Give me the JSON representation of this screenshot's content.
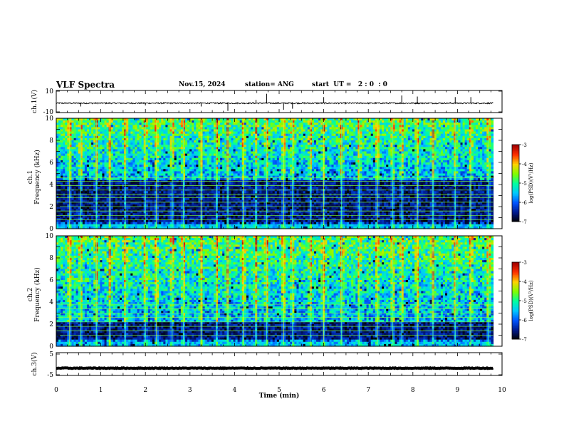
{
  "header": {
    "title": "VLF Spectra",
    "date": "Nov.15, 2024",
    "station": "station= ANG",
    "start": "start  UT =   2 : 0  : 0"
  },
  "chart_data": [
    {
      "type": "line",
      "title": "",
      "ylabel": "ch.1(V)",
      "ylim": [
        -10,
        10
      ],
      "yticks": [
        "10",
        "-10"
      ],
      "description": "ch.1 waveform, near-zero baseline around -1.5 V with sparse spikes",
      "baseline": -1.5,
      "noise": 0.6,
      "spikes": [
        {
          "x": 0.55,
          "y": -4.5
        },
        {
          "x": 2.0,
          "y": -3.5
        },
        {
          "x": 3.25,
          "y": -4.5
        },
        {
          "x": 3.85,
          "y": -8.5
        },
        {
          "x": 4.48,
          "y": 1.5
        },
        {
          "x": 4.72,
          "y": 7.0
        },
        {
          "x": 5.1,
          "y": -7.5
        },
        {
          "x": 5.3,
          "y": -6.5
        },
        {
          "x": 6.0,
          "y": 4.0
        },
        {
          "x": 7.75,
          "y": 5.5
        },
        {
          "x": 8.1,
          "y": 4.5
        },
        {
          "x": 8.95,
          "y": 4.0
        },
        {
          "x": 9.3,
          "y": 4.0
        }
      ]
    },
    {
      "type": "heatmap",
      "ylabel": "ch.1\nFrequency (kHz)",
      "ylabel_line1": "ch.1",
      "ylabel_line2": "Frequency  (kHz)",
      "ylim": [
        0,
        10
      ],
      "yticks": [
        "0",
        "2",
        "4",
        "6",
        "8",
        "10"
      ],
      "colorbar": {
        "label": "log(PSD)(V²/Hz)",
        "range": [
          -7,
          -3
        ],
        "ticks": [
          "-3",
          "-4",
          "-5",
          "-6",
          "-7"
        ]
      },
      "colors": [
        "#000000",
        "#001a8c",
        "#0055ff",
        "#00c8ff",
        "#00ffa0",
        "#80ff00",
        "#ffd200",
        "#ff3000",
        "#a00000"
      ],
      "horizontal_lines_khz": [
        0.8,
        1.2,
        1.6,
        2.0,
        2.4,
        2.8,
        3.1,
        3.5,
        3.9,
        4.3,
        4.6
      ],
      "dark_band_khz": [
        0.6,
        4.4
      ],
      "burst_times_min": [
        0.3,
        0.55,
        0.9,
        1.2,
        1.55,
        2.0,
        2.25,
        2.6,
        2.85,
        3.25,
        3.6,
        3.85,
        4.2,
        4.48,
        4.72,
        5.1,
        5.3,
        5.7,
        6.0,
        6.4,
        6.8,
        7.2,
        7.55,
        7.75,
        8.1,
        8.45,
        8.95,
        9.3,
        9.7
      ]
    },
    {
      "type": "heatmap",
      "ylabel": "ch.2\nFrequency (kHz)",
      "ylabel_line1": "ch.2",
      "ylabel_line2": "Frequency  (kHz)",
      "ylim": [
        0,
        10
      ],
      "yticks": [
        "0",
        "2",
        "4",
        "6",
        "8",
        "10"
      ],
      "colorbar": {
        "label": "log(PSD)(V²/Hz)",
        "range": [
          -7,
          -3
        ],
        "ticks": [
          "-3",
          "-4",
          "-5",
          "-6",
          "-7"
        ]
      },
      "colors": [
        "#000000",
        "#001a8c",
        "#0055ff",
        "#00c8ff",
        "#00ffa0",
        "#80ff00",
        "#ffd200",
        "#ff3000",
        "#a00000"
      ],
      "horizontal_lines_khz": [
        1.0,
        1.4,
        1.8,
        2.2,
        2.6,
        3.0,
        3.4,
        3.8
      ],
      "dark_band_khz": [
        0.6,
        2.2
      ],
      "burst_times_min": [
        0.3,
        0.55,
        0.9,
        1.2,
        1.55,
        2.0,
        2.25,
        2.6,
        2.85,
        3.25,
        3.6,
        3.85,
        4.2,
        4.48,
        4.72,
        5.1,
        5.3,
        5.7,
        6.0,
        6.4,
        6.8,
        7.2,
        7.55,
        7.75,
        8.1,
        8.45,
        8.95,
        9.3,
        9.7
      ]
    },
    {
      "type": "line",
      "ylabel": "ch.3(V)",
      "ylim": [
        -5,
        5
      ],
      "yticks": [
        "5",
        "-5"
      ],
      "baseline": -1.8,
      "noise": 0.15
    }
  ],
  "xaxis": {
    "label": "Time  (min)",
    "xlim": [
      0,
      10
    ],
    "ticks": [
      "0",
      "1",
      "2",
      "3",
      "4",
      "5",
      "6",
      "7",
      "8",
      "9",
      "10"
    ],
    "data_end": 9.8
  }
}
